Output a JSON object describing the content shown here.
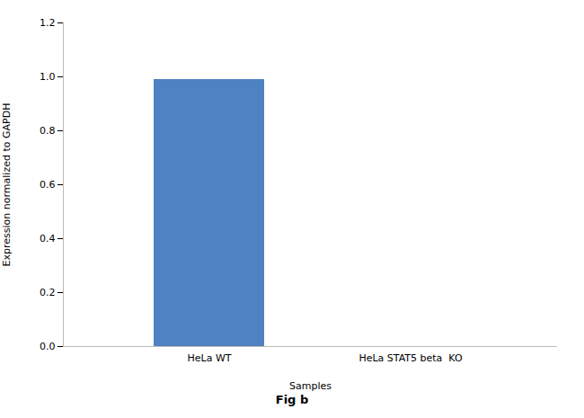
{
  "chart_data": {
    "type": "bar",
    "categories": [
      "HeLa WT",
      "HeLa STAT5 beta  KO"
    ],
    "values": [
      0.99,
      0.0
    ],
    "color": "#4e82c0",
    "xlabel": "Samples",
    "ylabel": "Expression normalized to GAPDH",
    "ylim": [
      0,
      1.2
    ],
    "yticks": [
      {
        "value": 0,
        "label": "0.0"
      },
      0.2,
      0.4,
      0.6,
      0.8,
      {
        "value": 1.0,
        "label": "1.0"
      },
      1.2
    ],
    "grid": false,
    "annotations": [
      "Fig b"
    ]
  }
}
